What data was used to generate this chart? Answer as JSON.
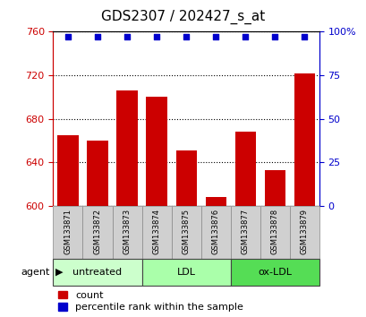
{
  "title": "GDS2307 / 202427_s_at",
  "samples": [
    "GSM133871",
    "GSM133872",
    "GSM133873",
    "GSM133874",
    "GSM133875",
    "GSM133876",
    "GSM133877",
    "GSM133878",
    "GSM133879"
  ],
  "counts": [
    665,
    660,
    706,
    700,
    651,
    608,
    668,
    633,
    722
  ],
  "percentiles": [
    97,
    97,
    97,
    97,
    97,
    97,
    97,
    97,
    97
  ],
  "ylim_left": [
    600,
    760
  ],
  "ylim_right": [
    0,
    100
  ],
  "yticks_left": [
    600,
    640,
    680,
    720,
    760
  ],
  "yticks_right": [
    0,
    25,
    50,
    75,
    100
  ],
  "bar_color": "#cc0000",
  "dot_color": "#0000cc",
  "bar_bottom": 600,
  "group_colors": [
    "#ccffcc",
    "#aaffaa",
    "#55dd55"
  ],
  "groups": [
    {
      "label": "untreated",
      "indices": [
        0,
        1,
        2
      ]
    },
    {
      "label": "LDL",
      "indices": [
        3,
        4,
        5
      ]
    },
    {
      "label": "ox-LDL",
      "indices": [
        6,
        7,
        8
      ]
    }
  ],
  "agent_label": "agent",
  "legend_count_label": "count",
  "legend_pct_label": "percentile rank within the sample",
  "left_axis_color": "#cc0000",
  "right_axis_color": "#0000cc",
  "title_fontsize": 11,
  "tick_fontsize": 8,
  "sample_fontsize": 6,
  "group_fontsize": 8,
  "legend_fontsize": 8
}
